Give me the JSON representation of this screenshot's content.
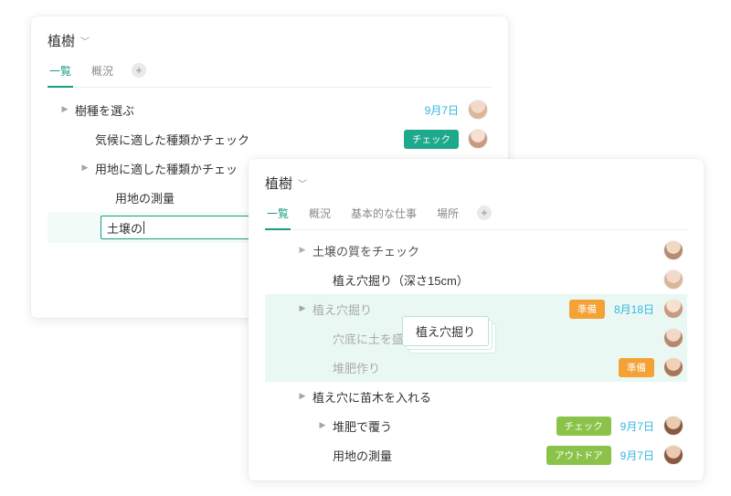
{
  "colors": {
    "accent": "#1a9c82",
    "date_accent": "#35b6e0",
    "tag_check": "#1fa98c",
    "tag_check2": "#8bc34a",
    "tag_prep": "#f4a236",
    "tag_outdoor": "#8bc34a",
    "row_highlight": "#eaf8f4",
    "muted_text": "#aaaaaa"
  },
  "panelA": {
    "title": "植樹",
    "tabs": [
      "一覧",
      "概況"
    ],
    "active_tab_index": 0,
    "rows": [
      {
        "kind": "parent",
        "indent": 0,
        "label": "樹種を選ぶ",
        "date": "9月7日",
        "date_color": "#35b6e0",
        "avatar": "av1"
      },
      {
        "kind": "item",
        "indent": 1,
        "label": "気候に適した種類かチェック",
        "tag": "チェック",
        "tag_color": "#1fa98c",
        "avatar": "av2"
      },
      {
        "kind": "parent",
        "indent": 1,
        "label": "用地に適した種類かチェッ"
      },
      {
        "kind": "item",
        "indent": 2,
        "label": "用地の測量"
      },
      {
        "kind": "input",
        "indent": 2,
        "value": "土壌の"
      }
    ]
  },
  "panelB": {
    "title": "植樹",
    "tabs": [
      "一覧",
      "概況",
      "基本的な仕事",
      "場所"
    ],
    "active_tab_index": 0,
    "rows": [
      {
        "kind": "parent",
        "indent": 1,
        "label": "土壌の質をチェック",
        "muted": false,
        "avatar": "av3",
        "truncated_top": true
      },
      {
        "kind": "item",
        "indent": 2,
        "label": "植え穴掘り（深さ15cm）",
        "avatar": "av1"
      },
      {
        "kind": "parent",
        "indent": 1,
        "label": "植え穴掘り",
        "muted": true,
        "tag": "準備",
        "tag_color": "#f4a236",
        "date": "8月18日",
        "date_color": "#35b6e0",
        "avatar": "av2",
        "hl": true
      },
      {
        "kind": "item",
        "indent": 2,
        "label": "穴底に土を盛る",
        "muted": true,
        "avatar": "av5",
        "hl": true
      },
      {
        "kind": "item",
        "indent": 2,
        "label": "堆肥作り",
        "muted": true,
        "tag": "準備",
        "tag_color": "#f4a236",
        "avatar": "av3",
        "hl": true
      },
      {
        "kind": "parent",
        "indent": 1,
        "label": "植え穴に苗木を入れる"
      },
      {
        "kind": "parent",
        "indent": 2,
        "label": "堆肥で覆う",
        "tag": "チェック",
        "tag_color": "#8bc34a",
        "date": "9月7日",
        "date_color": "#35b6e0",
        "avatar": "av4"
      },
      {
        "kind": "item",
        "indent": 2,
        "label": "用地の測量",
        "no_caret": true,
        "tag": "アウトドア",
        "tag_color": "#8bc34a",
        "date": "9月7日",
        "date_color": "#35b6e0",
        "avatar": "av4"
      }
    ]
  },
  "drag_ghost_label": "植え穴掘り"
}
